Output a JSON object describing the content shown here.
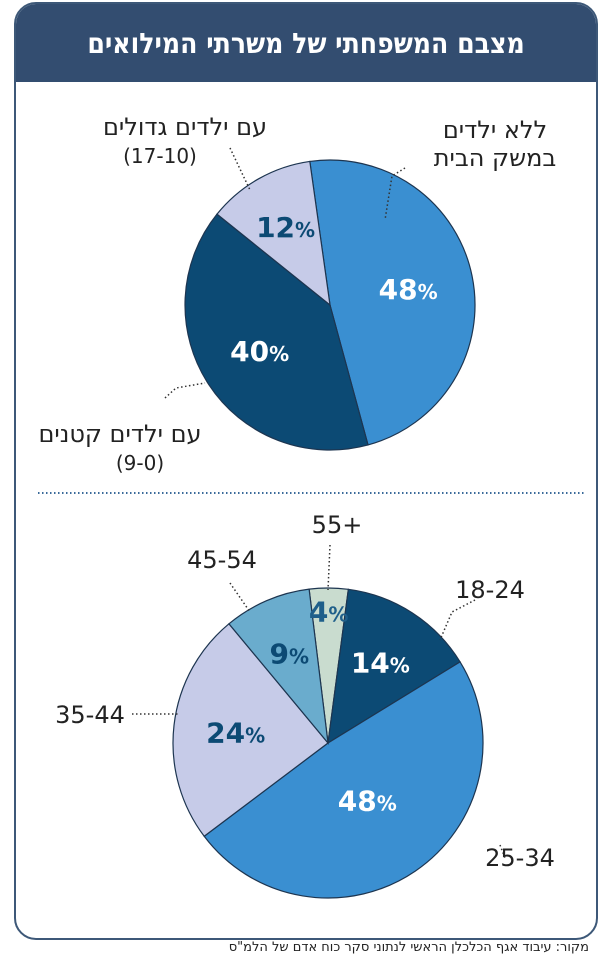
{
  "title": "מצבם המשפחתי של משרתי המילואים",
  "source": "מקור: עיבוד אגף הכלכלן הראשי לנתוני סקר כוח אדם של הלמ\"ס",
  "chart_data": [
    {
      "type": "pie",
      "title": "",
      "start_angle_deg": -8,
      "slices": [
        {
          "label_line1": "ללא ילדים",
          "label_line2": "במשק הבית",
          "value": 48,
          "text": "48",
          "color": "#3a8fd1",
          "text_color": "#ffffff"
        },
        {
          "label_line1": "עם ילדים קטנים",
          "label_line2": "(9-0)",
          "value": 40,
          "text": "40",
          "color": "#0c4a74",
          "text_color": "#ffffff"
        },
        {
          "label_line1": "עם ילדים גדולים",
          "label_line2": "(17-10)",
          "value": 12,
          "text": "12",
          "color": "#c6cbe8",
          "text_color": "#0c4a74"
        }
      ]
    },
    {
      "type": "pie",
      "title": "",
      "start_angle_deg": -7,
      "slices": [
        {
          "label_line1": "55+",
          "value": 4,
          "text": "4",
          "color": "#c9dccf",
          "text_color": "#1f5f8a"
        },
        {
          "label_line1": "18-24",
          "value": 14,
          "text": "14",
          "color": "#0c4a74",
          "text_color": "#ffffff"
        },
        {
          "label_line1": "25-34",
          "value": 48,
          "text": "48",
          "color": "#3a8fd1",
          "text_color": "#ffffff"
        },
        {
          "label_line1": "35-44",
          "value": 24,
          "text": "24",
          "color": "#c6cbe8",
          "text_color": "#0c4a74"
        },
        {
          "label_line1": "45-54",
          "value": 9,
          "text": "9",
          "color": "#6aaccd",
          "text_color": "#0c4a74"
        }
      ]
    }
  ],
  "percent_sign": "%"
}
